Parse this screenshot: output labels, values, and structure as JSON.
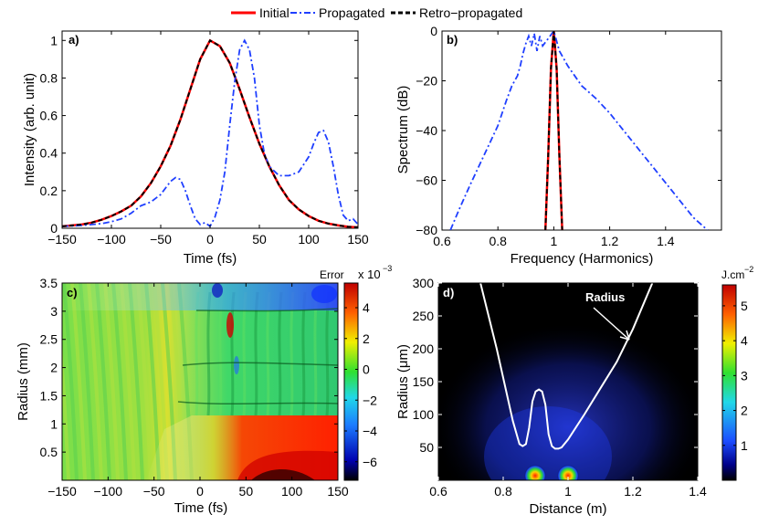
{
  "legend": {
    "entries": [
      {
        "label": "Initial",
        "color": "#ff0000",
        "dash": "solid"
      },
      {
        "label": "Propagated",
        "color": "#1f3fff",
        "dash": "dashdot"
      },
      {
        "label": "Retro−propagated",
        "color": "#000000",
        "dash": "dashed"
      }
    ]
  },
  "colors": {
    "initial": "#ff0000",
    "propagated": "#1f3fff",
    "retro": "#000000",
    "radius_line": "#ffffff"
  },
  "chart_data": [
    {
      "panel": "a)",
      "type": "line",
      "xlabel": "Time (fs)",
      "ylabel": "Intensity (arb. unit)",
      "xlim": [
        -150,
        150
      ],
      "ylim": [
        0,
        1.05
      ],
      "xticks": [
        "−150",
        "−100",
        "−50",
        "0",
        "50",
        "100",
        "150"
      ],
      "xtick_values": [
        -150,
        -100,
        -50,
        0,
        50,
        100,
        150
      ],
      "yticks": [
        "0",
        "0.2",
        "0.4",
        "0.6",
        "0.8",
        "1"
      ],
      "ytick_values": [
        0,
        0.2,
        0.4,
        0.6,
        0.8,
        1
      ],
      "series": [
        {
          "name": "Initial",
          "x": [
            -150,
            -140,
            -130,
            -120,
            -110,
            -100,
            -90,
            -80,
            -70,
            -60,
            -50,
            -40,
            -30,
            -20,
            -10,
            0,
            10,
            20,
            30,
            40,
            50,
            60,
            70,
            80,
            90,
            100,
            110,
            120,
            130,
            140,
            150
          ],
          "y": [
            0.01,
            0.015,
            0.02,
            0.03,
            0.045,
            0.065,
            0.09,
            0.12,
            0.17,
            0.24,
            0.33,
            0.44,
            0.58,
            0.74,
            0.9,
            1.0,
            0.97,
            0.88,
            0.74,
            0.59,
            0.45,
            0.33,
            0.23,
            0.15,
            0.1,
            0.065,
            0.04,
            0.025,
            0.015,
            0.008,
            0.005
          ]
        },
        {
          "name": "Propagated",
          "x": [
            -150,
            -130,
            -110,
            -100,
            -90,
            -80,
            -70,
            -60,
            -50,
            -40,
            -35,
            -30,
            -25,
            -20,
            -15,
            -10,
            -5,
            0,
            5,
            10,
            15,
            20,
            25,
            30,
            35,
            40,
            45,
            50,
            55,
            60,
            70,
            80,
            90,
            100,
            105,
            110,
            115,
            120,
            125,
            130,
            135,
            140,
            145,
            150
          ],
          "y": [
            0.01,
            0.015,
            0.025,
            0.035,
            0.05,
            0.08,
            0.12,
            0.14,
            0.18,
            0.25,
            0.27,
            0.26,
            0.2,
            0.12,
            0.05,
            0.02,
            0.03,
            0.01,
            0.06,
            0.15,
            0.3,
            0.55,
            0.78,
            0.95,
            1.0,
            0.95,
            0.8,
            0.55,
            0.4,
            0.33,
            0.28,
            0.28,
            0.3,
            0.38,
            0.45,
            0.51,
            0.52,
            0.46,
            0.33,
            0.18,
            0.07,
            0.04,
            0.05,
            0.02
          ]
        },
        {
          "name": "Retro−propagated",
          "x": [
            -150,
            -140,
            -130,
            -120,
            -110,
            -100,
            -90,
            -80,
            -70,
            -60,
            -50,
            -40,
            -30,
            -20,
            -10,
            0,
            10,
            20,
            30,
            40,
            50,
            60,
            70,
            80,
            90,
            100,
            110,
            120,
            130,
            140,
            150
          ],
          "y": [
            0.01,
            0.015,
            0.02,
            0.03,
            0.045,
            0.065,
            0.09,
            0.12,
            0.17,
            0.24,
            0.33,
            0.44,
            0.58,
            0.74,
            0.9,
            1.0,
            0.97,
            0.88,
            0.74,
            0.59,
            0.45,
            0.33,
            0.23,
            0.15,
            0.1,
            0.065,
            0.04,
            0.025,
            0.015,
            0.008,
            0.005
          ]
        }
      ]
    },
    {
      "panel": "b)",
      "type": "line",
      "xlabel": "Frequency (Harmonics)",
      "ylabel": "Spectrum (dB)",
      "xlim": [
        0.6,
        1.6
      ],
      "ylim": [
        -80,
        0
      ],
      "xticks": [
        "0.6",
        "0.8",
        "1",
        "1.2",
        "1.4"
      ],
      "xtick_values": [
        0.6,
        0.8,
        1.0,
        1.2,
        1.4
      ],
      "yticks": [
        "−80",
        "−60",
        "−40",
        "−20",
        "0"
      ],
      "ytick_values": [
        -80,
        -60,
        -40,
        -20,
        0
      ],
      "series": [
        {
          "name": "Initial",
          "x": [
            0.97,
            0.98,
            0.99,
            1.0,
            1.01,
            1.02,
            1.03
          ],
          "y": [
            -80,
            -50,
            -15,
            0,
            -15,
            -50,
            -80
          ]
        },
        {
          "name": "Propagated",
          "x": [
            0.63,
            0.66,
            0.7,
            0.75,
            0.8,
            0.83,
            0.85,
            0.87,
            0.88,
            0.89,
            0.9,
            0.91,
            0.92,
            0.93,
            0.94,
            0.95,
            0.96,
            0.98,
            1.0,
            1.02,
            1.05,
            1.1,
            1.15,
            1.2,
            1.25,
            1.3,
            1.35,
            1.4,
            1.45,
            1.5,
            1.55
          ],
          "y": [
            -80,
            -72,
            -62,
            -50,
            -38,
            -28,
            -22,
            -18,
            -14,
            -9,
            -5,
            -2,
            -6,
            -1,
            -8,
            -2,
            -6,
            -3,
            0,
            -8,
            -14,
            -22,
            -27,
            -33,
            -40,
            -47,
            -54,
            -61,
            -68,
            -75,
            -80
          ]
        },
        {
          "name": "Retro−propagated",
          "x": [
            0.97,
            0.98,
            0.99,
            1.0,
            1.01,
            1.02,
            1.03
          ],
          "y": [
            -80,
            -50,
            -15,
            0,
            -15,
            -50,
            -80
          ]
        }
      ]
    },
    {
      "panel": "c)",
      "type": "heatmap",
      "title": "Error",
      "xlabel": "Time (fs)",
      "ylabel": "Radius (mm)",
      "xlim": [
        -150,
        150
      ],
      "ylim": [
        0,
        3.5
      ],
      "xticks": [
        "−150",
        "−100",
        "−50",
        "0",
        "50",
        "100",
        "150"
      ],
      "xtick_values": [
        -150,
        -100,
        -50,
        0,
        50,
        100,
        150
      ],
      "yticks": [
        "0.5",
        "1",
        "1.5",
        "2",
        "2.5",
        "3",
        "3.5"
      ],
      "ytick_values": [
        0.5,
        1,
        1.5,
        2,
        2.5,
        3,
        3.5
      ],
      "colorbar": {
        "label": "Error",
        "exponent": "x 10",
        "exponent_power": "−3",
        "range": [
          -7.2,
          5.6
        ],
        "ticks": [
          "4",
          "2",
          "0",
          "−2",
          "−4",
          "−6"
        ],
        "tick_values": [
          4,
          2,
          0,
          -2,
          -4,
          -6
        ]
      }
    },
    {
      "panel": "d)",
      "type": "heatmap",
      "xlabel": "Distance (m)",
      "ylabel": "Radius (μm)",
      "xlim": [
        0.6,
        1.4
      ],
      "ylim": [
        0,
        300
      ],
      "xticks": [
        "0.6",
        "0.8",
        "1",
        "1.2",
        "1.4"
      ],
      "xtick_values": [
        0.6,
        0.8,
        1.0,
        1.2,
        1.4
      ],
      "yticks": [
        "50",
        "100",
        "150",
        "200",
        "250",
        "300"
      ],
      "ytick_values": [
        50,
        100,
        150,
        200,
        250,
        300
      ],
      "annotation": "Radius",
      "radius_curve": {
        "x": [
          0.73,
          0.78,
          0.83,
          0.85,
          0.86,
          0.87,
          0.88,
          0.89,
          0.9,
          0.91,
          0.92,
          0.93,
          0.94,
          0.95,
          0.96,
          0.97,
          0.98,
          1.0,
          1.05,
          1.1,
          1.15,
          1.2,
          1.26
        ],
        "y": [
          300,
          200,
          90,
          55,
          52,
          55,
          80,
          120,
          135,
          138,
          135,
          115,
          70,
          52,
          48,
          48,
          50,
          62,
          100,
          140,
          180,
          230,
          300
        ]
      },
      "colorbar": {
        "label": "J.cm",
        "exponent": "−2",
        "range": [
          0,
          5.6
        ],
        "ticks": [
          "5",
          "4",
          "3",
          "2",
          "1"
        ],
        "tick_values": [
          5,
          4,
          3,
          2,
          1
        ]
      }
    }
  ]
}
